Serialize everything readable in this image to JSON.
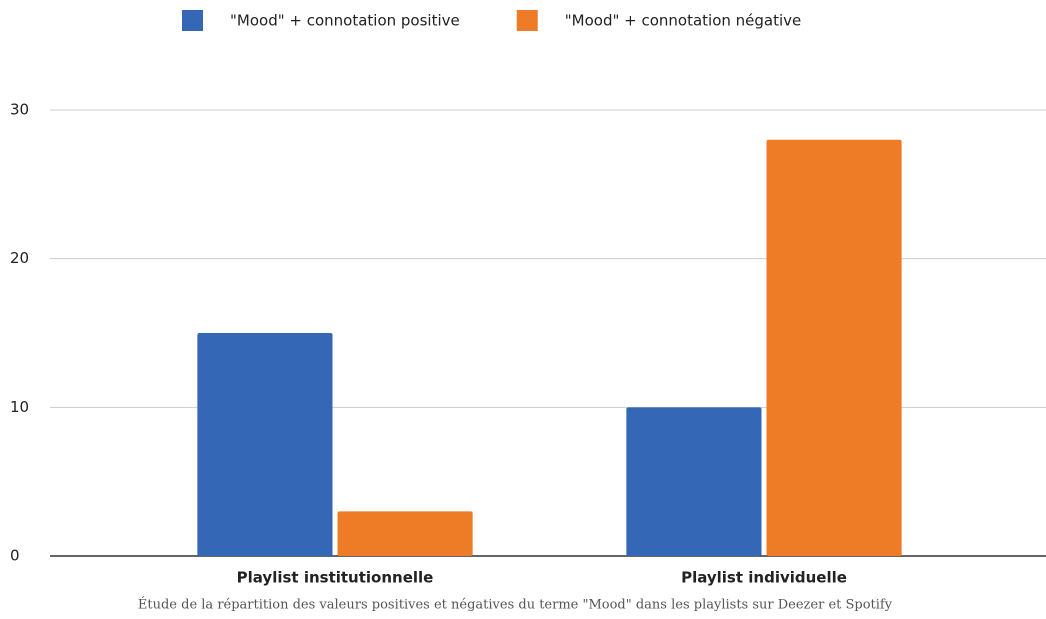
{
  "chart_data": {
    "type": "bar",
    "caption": "Étude de la répartition des valeurs positives et négatives du terme \"Mood\" dans les playlists sur Deezer et Spotify",
    "categories": [
      "Playlist institutionnelle",
      "Playlist individuelle"
    ],
    "series": [
      {
        "name": "\"Mood\" + connotation positive",
        "color": "#3468b6",
        "values": [
          15,
          10
        ]
      },
      {
        "name": "\"Mood\" + connotation négative",
        "color": "#ee7b26",
        "values": [
          3,
          28
        ]
      }
    ],
    "ylim": [
      0,
      30
    ],
    "yticks": [
      0,
      10,
      20,
      30
    ],
    "grid": true,
    "legend": "top"
  }
}
